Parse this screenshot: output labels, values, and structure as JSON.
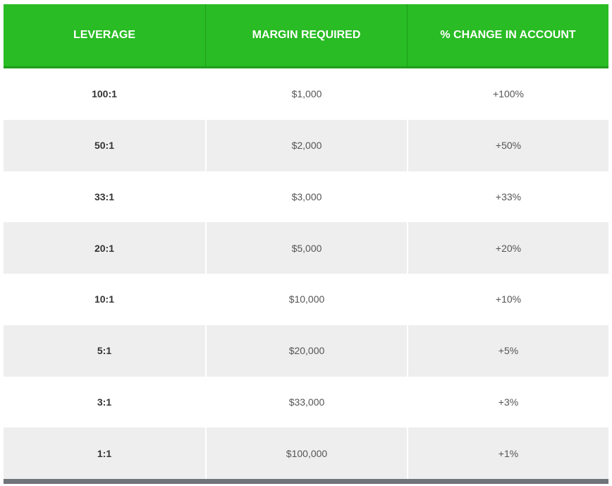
{
  "table": {
    "header": [
      "LEVERAGE",
      "MARGIN REQUIRED",
      "% CHANGE IN ACCOUNT"
    ],
    "rows": [
      [
        "100:1",
        "$1,000",
        "+100%"
      ],
      [
        "50:1",
        "$2,000",
        "+50%"
      ],
      [
        "33:1",
        "$3,000",
        "+33%"
      ],
      [
        "20:1",
        "$5,000",
        "+20%"
      ],
      [
        "10:1",
        "$10,000",
        "+10%"
      ],
      [
        "5:1",
        "$20,000",
        "+5%"
      ],
      [
        "3:1",
        "$33,000",
        "+3%"
      ],
      [
        "1:1",
        "$100,000",
        "+1%"
      ]
    ]
  }
}
